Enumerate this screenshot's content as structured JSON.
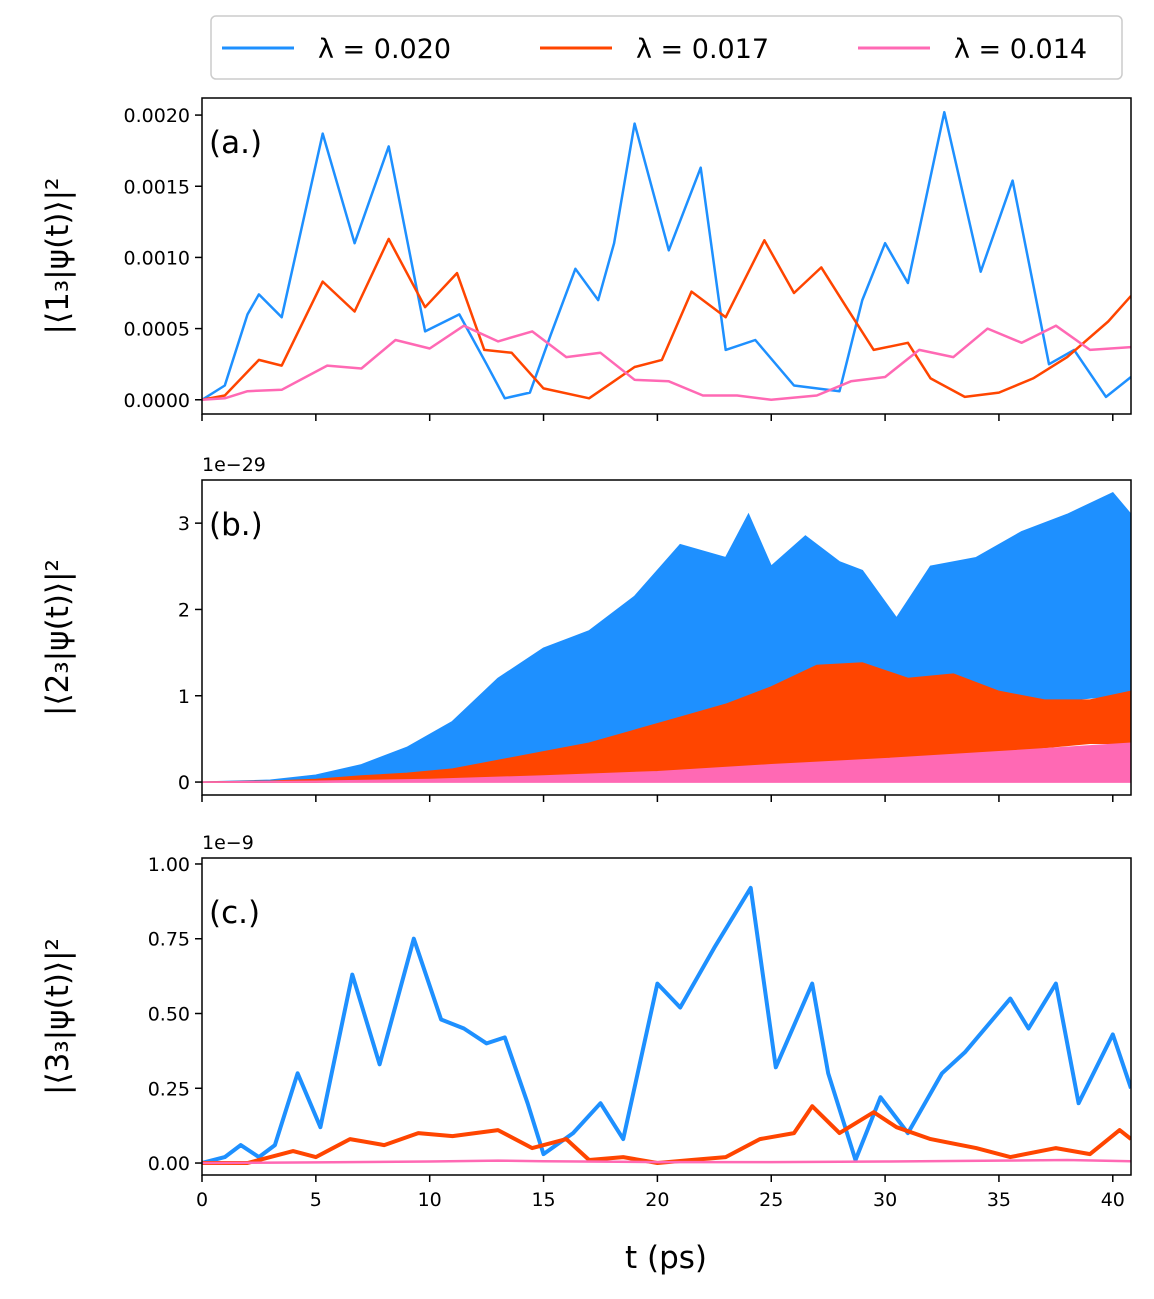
{
  "chart_data": {
    "type": "line",
    "xlabel": "t  (ps)",
    "xlim": [
      0,
      40.8
    ],
    "xticks": [
      0,
      5,
      10,
      15,
      20,
      25,
      30,
      35,
      40
    ],
    "legend": {
      "placement": "top",
      "entries": [
        {
          "label": "λ = 0.020",
          "color": "#1e90ff"
        },
        {
          "label": "λ = 0.017",
          "color": "#ff4500"
        },
        {
          "label": "λ = 0.014",
          "color": "#ff69b4"
        }
      ]
    },
    "panels": [
      {
        "label": "(a.)",
        "ylabel": "|⟨1₃|ψ(t)⟩|²",
        "ylim": [
          -0.0001,
          0.00212
        ],
        "yticks": [
          "0.0000",
          "0.0005",
          "0.0010",
          "0.0015",
          "0.0020"
        ],
        "ytick_values": [
          0,
          0.0005,
          0.001,
          0.0015,
          0.002
        ],
        "offset_text": "",
        "series": [
          {
            "name": "λ = 0.020",
            "color": "#1e90ff",
            "fill": false,
            "x": [
              0,
              1,
              2,
              2.5,
              3.5,
              5.3,
              6.7,
              8.2,
              9.8,
              11.3,
              12.5,
              13.3,
              14.4,
              15.3,
              16.4,
              17.4,
              18.1,
              19.0,
              20.5,
              21.9,
              23.0,
              24.3,
              26.0,
              28.0,
              29.0,
              30.0,
              31.0,
              32.6,
              34.2,
              35.6,
              37.2,
              38.3,
              39.7,
              40.8
            ],
            "y": [
              0,
              0.0001,
              0.0006,
              0.00074,
              0.00058,
              0.00187,
              0.0011,
              0.00178,
              0.00048,
              0.0006,
              0.00025,
              1e-05,
              5e-05,
              0.00045,
              0.00092,
              0.0007,
              0.0011,
              0.00194,
              0.00105,
              0.00163,
              0.00035,
              0.00042,
              0.0001,
              6e-05,
              0.0007,
              0.0011,
              0.00082,
              0.00202,
              0.0009,
              0.00154,
              0.00025,
              0.00035,
              2e-05,
              0.00016
            ]
          },
          {
            "name": "λ = 0.017",
            "color": "#ff4500",
            "fill": false,
            "x": [
              0,
              1,
              2.5,
              3.5,
              5.3,
              6.7,
              8.2,
              9.8,
              11.2,
              12.4,
              13.6,
              15.0,
              17.0,
              18.0,
              19.0,
              20.2,
              21.5,
              23.0,
              24.7,
              26.0,
              27.2,
              28.3,
              29.5,
              31.0,
              32.0,
              33.5,
              35.0,
              36.5,
              38.0,
              39.8,
              40.8
            ],
            "y": [
              0,
              3e-05,
              0.00028,
              0.00024,
              0.00083,
              0.00062,
              0.00113,
              0.00065,
              0.00089,
              0.00035,
              0.00033,
              8e-05,
              1e-05,
              0.00012,
              0.00023,
              0.00028,
              0.00076,
              0.00058,
              0.00112,
              0.00075,
              0.00093,
              0.00065,
              0.00035,
              0.0004,
              0.00015,
              2e-05,
              5e-05,
              0.00015,
              0.0003,
              0.00055,
              0.00073
            ]
          },
          {
            "name": "λ = 0.014",
            "color": "#ff69b4",
            "fill": false,
            "x": [
              0,
              1,
              2,
              3.5,
              5.5,
              7,
              8.5,
              10,
              11.5,
              13,
              14.5,
              16,
              17.5,
              19,
              20.5,
              22,
              23.5,
              25,
              27,
              28.5,
              30,
              31.5,
              33,
              34.5,
              36,
              37.5,
              39,
              40.8
            ],
            "y": [
              0,
              1e-05,
              6e-05,
              7e-05,
              0.00024,
              0.00022,
              0.00042,
              0.00036,
              0.00052,
              0.00041,
              0.00048,
              0.0003,
              0.00033,
              0.00014,
              0.00013,
              3e-05,
              3e-05,
              0.0,
              3e-05,
              0.00013,
              0.00016,
              0.00035,
              0.0003,
              0.0005,
              0.0004,
              0.00052,
              0.00035,
              0.00037
            ]
          }
        ]
      },
      {
        "label": "(b.)",
        "ylabel": "|⟨2₃|ψ(t)⟩|²",
        "ylim": [
          -0.15,
          3.5
        ],
        "yticks": [
          "0",
          "1",
          "2",
          "3"
        ],
        "ytick_values": [
          0,
          1,
          2,
          3
        ],
        "offset_text": "1e−29",
        "series": [
          {
            "name": "λ = 0.020",
            "color": "#1e90ff",
            "fill": true,
            "x": [
              0,
              3,
              5,
              7,
              9,
              11,
              13,
              15,
              17,
              19,
              21,
              23,
              24,
              25,
              26.5,
              28,
              29,
              30.5,
              32,
              34,
              36,
              38,
              40,
              40.8
            ],
            "y_upper": [
              0,
              0.02,
              0.08,
              0.2,
              0.4,
              0.7,
              1.2,
              1.55,
              1.75,
              2.15,
              2.75,
              2.6,
              3.1,
              2.5,
              2.85,
              2.55,
              2.45,
              1.9,
              2.5,
              2.6,
              2.9,
              3.1,
              3.35,
              3.1
            ],
            "y_lower": [
              0,
              0,
              0.02,
              0.05,
              0.07,
              0.08,
              0.09,
              0.1,
              0.12,
              0.15,
              0.2,
              0.25,
              0.3,
              0.35,
              0.45,
              0.6,
              0.75,
              0.9,
              1.0,
              0.95,
              0.9,
              0.95,
              1.0,
              1.0
            ]
          },
          {
            "name": "λ = 0.017",
            "color": "#ff4500",
            "fill": true,
            "x": [
              0,
              3,
              5,
              7,
              9,
              11,
              13,
              15,
              17,
              19,
              21,
              23,
              25,
              27,
              29,
              31,
              33,
              35,
              37,
              39,
              40.8
            ],
            "y_upper": [
              0,
              0.01,
              0.03,
              0.07,
              0.1,
              0.15,
              0.25,
              0.35,
              0.45,
              0.6,
              0.75,
              0.9,
              1.1,
              1.35,
              1.38,
              1.2,
              1.25,
              1.05,
              0.95,
              0.95,
              1.05
            ],
            "y_lower": [
              0,
              0,
              0.0,
              0.01,
              0.01,
              0.02,
              0.03,
              0.04,
              0.05,
              0.06,
              0.08,
              0.1,
              0.13,
              0.17,
              0.2,
              0.25,
              0.3,
              0.35,
              0.4,
              0.45,
              0.45
            ]
          },
          {
            "name": "λ = 0.014",
            "color": "#ff69b4",
            "fill": true,
            "x": [
              0,
              5,
              10,
              15,
              20,
              25,
              30,
              35,
              40.8
            ],
            "y_upper": [
              0,
              0.01,
              0.03,
              0.07,
              0.12,
              0.2,
              0.27,
              0.35,
              0.45
            ],
            "y_lower": [
              0,
              0,
              0,
              0,
              0,
              0,
              0,
              0,
              0
            ]
          }
        ]
      },
      {
        "label": "(c.)",
        "ylabel": "|⟨3₃|ψ(t)⟩|²",
        "ylim": [
          -0.04,
          1.02
        ],
        "yticks": [
          "0.00",
          "0.25",
          "0.50",
          "0.75",
          "1.00"
        ],
        "ytick_values": [
          0,
          0.25,
          0.5,
          0.75,
          1.0
        ],
        "offset_text": "1e−9",
        "series": [
          {
            "name": "λ = 0.020",
            "color": "#1e90ff",
            "fill": false,
            "thick": true,
            "x": [
              0,
              1,
              1.7,
              2.5,
              3.2,
              4.2,
              5.2,
              6.6,
              7.8,
              9.3,
              10.5,
              11.5,
              12.5,
              13.3,
              14.3,
              15.0,
              16.3,
              17.5,
              18.5,
              20.0,
              21.0,
              22.5,
              24.1,
              25.2,
              26.8,
              27.5,
              28.7,
              29.8,
              31.0,
              32.5,
              33.5,
              35.5,
              36.3,
              37.5,
              38.5,
              40.0,
              40.8
            ],
            "y": [
              0,
              0.02,
              0.06,
              0.02,
              0.06,
              0.3,
              0.12,
              0.63,
              0.33,
              0.75,
              0.48,
              0.45,
              0.4,
              0.42,
              0.2,
              0.03,
              0.1,
              0.2,
              0.08,
              0.6,
              0.52,
              0.72,
              0.92,
              0.32,
              0.6,
              0.3,
              0.01,
              0.22,
              0.1,
              0.3,
              0.37,
              0.55,
              0.45,
              0.6,
              0.2,
              0.43,
              0.25
            ]
          },
          {
            "name": "λ = 0.017",
            "color": "#ff4500",
            "fill": false,
            "thick": true,
            "x": [
              0,
              2,
              3,
              4,
              5,
              6.5,
              8,
              9.5,
              11,
              12,
              13,
              14.5,
              16,
              17,
              18.5,
              20,
              21.5,
              23,
              24.5,
              26,
              26.8,
              28,
              29.5,
              30.5,
              32,
              34,
              35.5,
              37.5,
              39,
              40.3,
              40.8
            ],
            "y": [
              0,
              0.0,
              0.02,
              0.04,
              0.02,
              0.08,
              0.06,
              0.1,
              0.09,
              0.1,
              0.11,
              0.05,
              0.08,
              0.01,
              0.02,
              0.0,
              0.01,
              0.02,
              0.08,
              0.1,
              0.19,
              0.1,
              0.17,
              0.12,
              0.08,
              0.05,
              0.02,
              0.05,
              0.03,
              0.11,
              0.08
            ]
          },
          {
            "name": "λ = 0.014",
            "color": "#ff69b4",
            "fill": false,
            "thick": false,
            "x": [
              0,
              5,
              10,
              13,
              15,
              20,
              25,
              30,
              35,
              38,
              40.8
            ],
            "y": [
              0,
              0.002,
              0.005,
              0.008,
              0.006,
              0.003,
              0.003,
              0.005,
              0.008,
              0.01,
              0.006
            ]
          }
        ]
      }
    ]
  }
}
